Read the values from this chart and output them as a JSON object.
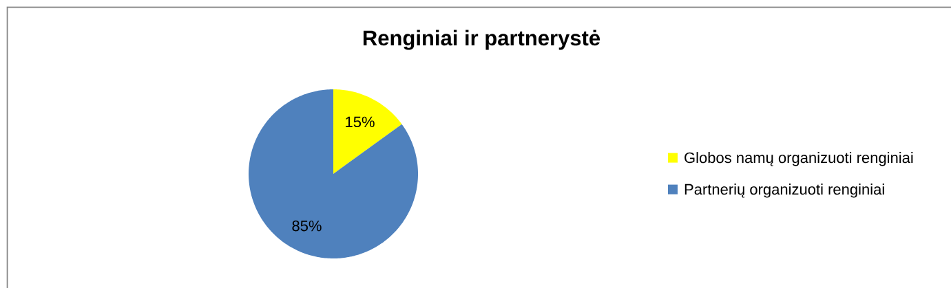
{
  "chart_data": {
    "type": "pie",
    "title": "Renginiai ir partnerystė",
    "categories": [
      "Globos namų organizuoti renginiai",
      "Partnerių organizuoti renginiai"
    ],
    "values": [
      15,
      85
    ],
    "colors": [
      "#ffff00",
      "#4f81bd"
    ],
    "value_labels": [
      "15%",
      "85%"
    ],
    "legend": "right"
  }
}
